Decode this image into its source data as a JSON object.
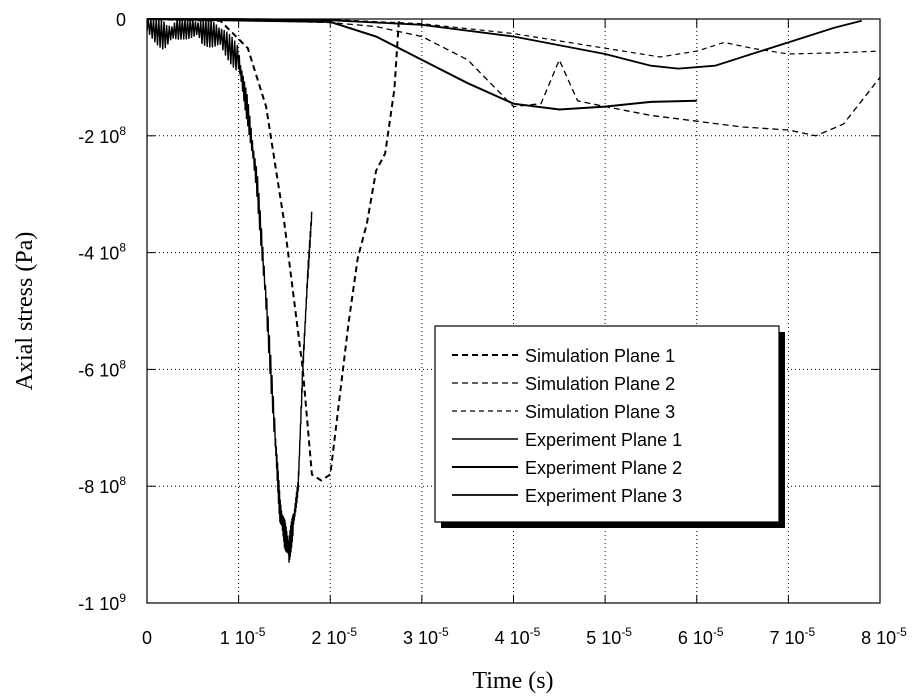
{
  "chart_data": {
    "type": "line",
    "title": "",
    "xlabel": "Time (s)",
    "ylabel": "Axial stress  (Pa)",
    "xlim": [
      0,
      8e-05
    ],
    "ylim": [
      -1000000000.0,
      0
    ],
    "grid": true,
    "legend_position": "bottom-right",
    "x_ticks": [
      {
        "value": 0,
        "mant": "0",
        "exp": ""
      },
      {
        "value": 1e-05,
        "mant": "1 10",
        "exp": "-5"
      },
      {
        "value": 2e-05,
        "mant": "2 10",
        "exp": "-5"
      },
      {
        "value": 3e-05,
        "mant": "3 10",
        "exp": "-5"
      },
      {
        "value": 4e-05,
        "mant": "4 10",
        "exp": "-5"
      },
      {
        "value": 5e-05,
        "mant": "5 10",
        "exp": "-5"
      },
      {
        "value": 6e-05,
        "mant": "6 10",
        "exp": "-5"
      },
      {
        "value": 7e-05,
        "mant": "7 10",
        "exp": "-5"
      },
      {
        "value": 8e-05,
        "mant": "8 10",
        "exp": "-5"
      }
    ],
    "y_ticks": [
      {
        "value": 0,
        "mant": "0",
        "exp": ""
      },
      {
        "value": -200000000.0,
        "mant": "-2 10",
        "exp": "8"
      },
      {
        "value": -400000000.0,
        "mant": "-4 10",
        "exp": "8"
      },
      {
        "value": -600000000.0,
        "mant": "-6 10",
        "exp": "8"
      },
      {
        "value": -800000000.0,
        "mant": "-8 10",
        "exp": "8"
      },
      {
        "value": -1000000000.0,
        "mant": "-1 10",
        "exp": "9"
      }
    ],
    "series": [
      {
        "name": "Simulation Plane 1",
        "style": "dashed-bold",
        "x": [
          0,
          8e-06,
          1.1e-05,
          1.3e-05,
          1.5e-05,
          1.7e-05,
          1.8e-05,
          1.9e-05,
          2e-05,
          2.2e-05,
          2.3e-05,
          2.4e-05,
          2.5e-05,
          2.6e-05,
          2.7e-05,
          2.75e-05
        ],
        "y": [
          0,
          -3000000.0,
          -50000000.0,
          -150000000.0,
          -350000000.0,
          -600000000.0,
          -780000000.0,
          -790000000.0,
          -780000000.0,
          -520000000.0,
          -410000000.0,
          -350000000.0,
          -260000000.0,
          -230000000.0,
          -120000000.0,
          0
        ]
      },
      {
        "name": "Simulation Plane 2",
        "style": "dashed",
        "x": [
          0,
          1e-05,
          2e-05,
          2.5e-05,
          3e-05,
          3.5e-05,
          4e-05,
          4.3e-05,
          4.5e-05,
          4.7e-05,
          5e-05,
          5.5e-05,
          6e-05,
          6.5e-05,
          7e-05,
          7.3e-05,
          7.6e-05,
          7.8e-05,
          8e-05
        ],
        "y": [
          0,
          -2000000.0,
          -6000000.0,
          -13000000.0,
          -30000000.0,
          -70000000.0,
          -150000000.0,
          -145000000.0,
          -70000000.0,
          -140000000.0,
          -150000000.0,
          -165000000.0,
          -175000000.0,
          -185000000.0,
          -190000000.0,
          -200000000.0,
          -180000000.0,
          -140000000.0,
          -100000000.0
        ]
      },
      {
        "name": "Simulation Plane 3",
        "style": "dashed-fine",
        "x": [
          0,
          1e-05,
          2e-05,
          3e-05,
          4e-05,
          5e-05,
          5.6e-05,
          6e-05,
          6.3e-05,
          6.6e-05,
          7e-05,
          7.5e-05,
          8e-05
        ],
        "y": [
          0,
          0,
          -1000000.0,
          -8000000.0,
          -25000000.0,
          -50000000.0,
          -65000000.0,
          -55000000.0,
          -40000000.0,
          -50000000.0,
          -60000000.0,
          -58000000.0,
          -55000000.0
        ]
      },
      {
        "name": "Experiment Plane 1",
        "style": "solid",
        "x": [
          0,
          2e-06,
          4e-06,
          6e-06,
          8e-06,
          1e-05,
          1.1e-05,
          1.2e-05,
          1.3e-05,
          1.4e-05,
          1.45e-05,
          1.5e-05,
          1.55e-05,
          1.6e-05,
          1.65e-05,
          1.7e-05,
          1.75e-05,
          1.8e-05
        ],
        "y": [
          -10000000.0,
          -30000000.0,
          -10000000.0,
          -20000000.0,
          -30000000.0,
          -70000000.0,
          -160000000.0,
          -280000000.0,
          -480000000.0,
          -720000000.0,
          -840000000.0,
          -880000000.0,
          -910000000.0,
          -860000000.0,
          -800000000.0,
          -600000000.0,
          -450000000.0,
          -330000000.0
        ]
      },
      {
        "name": "Experiment Plane 2",
        "style": "solid-bold",
        "x": [
          0,
          2e-05,
          2.5e-05,
          3e-05,
          3.5e-05,
          4e-05,
          4.5e-05,
          5e-05,
          5.5e-05,
          6e-05
        ],
        "y": [
          0,
          -5000000.0,
          -30000000.0,
          -70000000.0,
          -110000000.0,
          -145000000.0,
          -155000000.0,
          -150000000.0,
          -142000000.0,
          -140000000.0
        ]
      },
      {
        "name": "Experiment Plane 3",
        "style": "solid-fine",
        "x": [
          0,
          1e-05,
          2e-05,
          3e-05,
          4e-05,
          5e-05,
          5.5e-05,
          5.8e-05,
          6.2e-05,
          6.6e-05,
          7e-05,
          7.5e-05,
          7.8e-05
        ],
        "y": [
          0,
          0,
          -2000000.0,
          -10000000.0,
          -30000000.0,
          -60000000.0,
          -80000000.0,
          -85000000.0,
          -80000000.0,
          -60000000.0,
          -40000000.0,
          -15000000.0,
          -3000000.0
        ]
      }
    ],
    "legend_labels": [
      "Simulation Plane 1",
      "Simulation Plane 2",
      "Simulation Plane 3",
      "Experiment Plane 1",
      "Experiment Plane 2",
      "Experiment Plane    3"
    ]
  }
}
